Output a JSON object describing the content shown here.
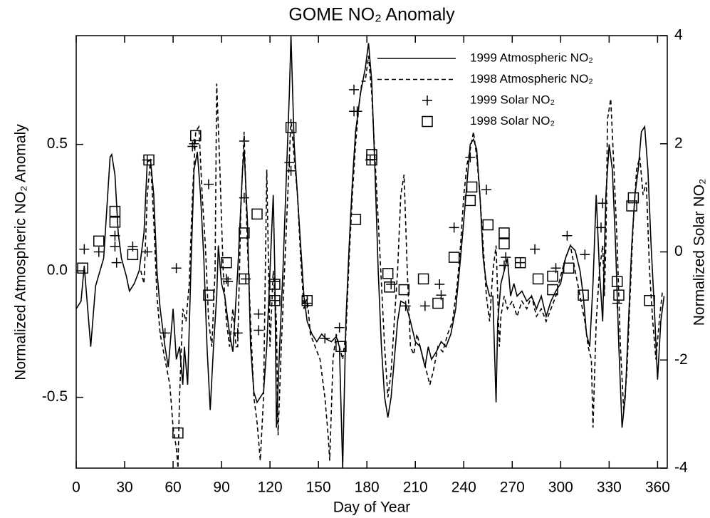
{
  "chart_data": {
    "type": "line",
    "title": "GOME NO₂ Anomaly",
    "x_label": "Day of Year",
    "y_label": "Normalized Atmospheric NO₂ Anomaly",
    "y2_label": "Normalized Solar NO₂",
    "xlim": [
      0,
      366
    ],
    "xticks": [
      0,
      30,
      60,
      90,
      120,
      150,
      180,
      210,
      240,
      270,
      300,
      330,
      360
    ],
    "ylim": [
      -0.78,
      0.93
    ],
    "yticks": [
      {
        "value": -0.5,
        "label": "-0.5"
      },
      {
        "value": 0,
        "label": "0.0"
      },
      {
        "value": 0.5,
        "label": "0.5"
      }
    ],
    "y2lim": [
      -4,
      4
    ],
    "y2ticks": [
      -4,
      -2,
      0,
      2,
      4
    ],
    "legend": "upper right",
    "series": [
      {
        "name": "1999 Atmospheric NO₂",
        "color": "#000000",
        "style": "solid",
        "x": [
          0,
          3,
          5,
          9,
          12,
          17,
          21,
          22,
          24,
          26,
          28,
          31,
          33,
          36,
          39,
          42,
          44,
          46,
          48,
          50,
          52,
          55,
          57,
          60,
          62,
          64,
          66,
          67,
          69,
          71,
          73,
          75,
          77,
          79,
          81,
          83,
          85,
          87,
          88,
          90,
          92,
          95,
          97,
          100,
          103,
          104,
          106,
          108,
          110,
          112,
          114,
          116,
          118,
          120,
          122,
          123,
          124,
          126,
          128,
          130,
          132,
          133,
          135,
          137,
          139,
          141,
          143,
          146,
          149,
          152,
          155,
          158,
          161,
          163,
          165,
          167,
          169,
          171,
          173,
          176,
          179,
          181,
          183,
          185,
          187,
          189,
          191,
          193,
          195,
          197,
          199,
          201,
          204,
          207,
          210,
          213,
          216,
          218,
          220,
          223,
          226,
          229,
          232,
          235,
          238,
          240,
          242,
          244,
          246,
          248,
          250,
          252,
          254,
          256,
          258,
          260,
          261,
          263,
          265,
          267,
          269,
          271,
          273,
          276,
          279,
          282,
          285,
          288,
          291,
          294,
          297,
          300,
          303,
          306,
          309,
          312,
          314,
          316,
          318,
          320,
          322,
          324,
          326,
          328,
          330,
          332,
          334,
          336,
          338,
          340,
          342,
          344,
          346,
          348,
          350,
          352,
          354,
          356,
          358,
          360,
          362,
          364
        ],
        "values": [
          -0.15,
          -0.12,
          0.02,
          -0.3,
          -0.06,
          0.05,
          0.45,
          0.46,
          0.38,
          0.15,
          0.05,
          -0.02,
          -0.08,
          -0.05,
          0.0,
          0.15,
          0.43,
          0.44,
          0.3,
          0.0,
          -0.15,
          -0.3,
          -0.38,
          -0.15,
          -0.35,
          -0.3,
          -0.45,
          -0.3,
          -0.45,
          0.0,
          0.4,
          0.47,
          0.3,
          0.05,
          -0.3,
          -0.55,
          -0.3,
          -0.1,
          0.1,
          -0.05,
          -0.1,
          -0.25,
          -0.32,
          0.0,
          0.4,
          0.48,
          0.2,
          -0.3,
          -0.48,
          -0.52,
          -0.5,
          -0.48,
          -0.3,
          0.0,
          0.3,
          0.0,
          -0.62,
          -0.3,
          0.0,
          0.35,
          0.7,
          0.93,
          0.5,
          0.3,
          0.1,
          -0.1,
          -0.2,
          -0.25,
          -0.28,
          -0.25,
          -0.27,
          -0.28,
          -0.26,
          -0.3,
          -0.78,
          -0.2,
          0.1,
          0.35,
          0.55,
          0.7,
          0.8,
          0.9,
          0.75,
          0.4,
          0.0,
          -0.3,
          -0.5,
          -0.58,
          -0.5,
          -0.35,
          -0.2,
          -0.12,
          -0.13,
          -0.2,
          -0.28,
          -0.3,
          -0.38,
          -0.3,
          -0.35,
          -0.32,
          -0.28,
          -0.3,
          -0.25,
          -0.15,
          0.05,
          0.2,
          0.35,
          0.5,
          0.52,
          0.48,
          0.3,
          0.05,
          -0.05,
          -0.1,
          -0.1,
          -0.52,
          -0.2,
          -0.05,
          0.0,
          0.05,
          -0.1,
          -0.05,
          -0.1,
          -0.08,
          -0.12,
          -0.1,
          -0.15,
          -0.1,
          -0.18,
          -0.12,
          -0.08,
          -0.05,
          0.05,
          0.1,
          0.08,
          0.0,
          -0.1,
          -0.25,
          -0.3,
          -0.05,
          0.3,
          0.0,
          -0.2,
          0.3,
          0.5,
          0.4,
          0.1,
          -0.3,
          -0.62,
          -0.5,
          -0.2,
          0.1,
          0.3,
          0.4,
          0.55,
          0.57,
          0.4,
          0.1,
          -0.15,
          -0.43,
          -0.2,
          -0.1
        ]
      },
      {
        "name": "1998 Atmospheric NO₂",
        "color": "#000000",
        "style": "dashed",
        "x": [
          40,
          42,
          44,
          46,
          48,
          50,
          52,
          55,
          58,
          60,
          62,
          63,
          64,
          66,
          68,
          70,
          72,
          74,
          76,
          78,
          80,
          82,
          84,
          86,
          87,
          89,
          91,
          93,
          95,
          97,
          99,
          100,
          102,
          104,
          106,
          108,
          110,
          112,
          114,
          116,
          118,
          120,
          122,
          124,
          125,
          127,
          129,
          131,
          133,
          135,
          137,
          139,
          141,
          143,
          145,
          148,
          151,
          154,
          156,
          157,
          159,
          161,
          163,
          165,
          167,
          169,
          171,
          173,
          175,
          177,
          179,
          181,
          183,
          185,
          187,
          189,
          191,
          193,
          195,
          197,
          199,
          201,
          203,
          205,
          207,
          209,
          211,
          213,
          215,
          217,
          219,
          221,
          224,
          227,
          230,
          233,
          236,
          238,
          240,
          242,
          244,
          246,
          248,
          250,
          252,
          254,
          256,
          258,
          260,
          262,
          263,
          265,
          267,
          270,
          273,
          276,
          279,
          282,
          285,
          288,
          291,
          294,
          297,
          300,
          303,
          306,
          309,
          312,
          315,
          317,
          319,
          320,
          322,
          324,
          326,
          327,
          328,
          329,
          331,
          333,
          335,
          337,
          339,
          341,
          343,
          345,
          347,
          349,
          351,
          353,
          355,
          357,
          359,
          361,
          363
        ],
        "values": [
          0.0,
          -0.05,
          0.3,
          0.44,
          0.2,
          -0.1,
          -0.25,
          -0.35,
          -0.45,
          -0.62,
          -0.7,
          -0.78,
          -0.5,
          -0.15,
          -0.2,
          -0.05,
          0.3,
          0.55,
          0.57,
          0.3,
          0.1,
          -0.2,
          -0.3,
          0.0,
          0.74,
          0.4,
          0.0,
          -0.2,
          -0.3,
          -0.15,
          -0.3,
          -0.3,
          0.25,
          0.55,
          0.1,
          -0.2,
          -0.5,
          -0.6,
          -0.75,
          -0.5,
          0.4,
          -0.3,
          0.0,
          -0.2,
          -0.65,
          -0.3,
          0.0,
          0.3,
          0.6,
          0.45,
          0.3,
          0.05,
          -0.15,
          -0.1,
          -0.25,
          -0.3,
          -0.35,
          -0.5,
          -0.65,
          -0.75,
          -0.35,
          -0.25,
          -0.3,
          -0.35,
          -0.25,
          0.05,
          0.3,
          0.5,
          0.65,
          0.75,
          0.75,
          0.85,
          0.7,
          0.45,
          0.2,
          -0.05,
          -0.3,
          -0.5,
          -0.4,
          -0.2,
          0.0,
          0.3,
          0.38,
          0.0,
          -0.3,
          -0.33,
          -0.25,
          -0.3,
          -0.35,
          -0.4,
          -0.45,
          -0.4,
          -0.3,
          -0.32,
          -0.25,
          -0.2,
          -0.05,
          0.1,
          0.3,
          0.42,
          0.48,
          0.55,
          0.45,
          0.3,
          0.1,
          -0.1,
          -0.2,
          0.0,
          0.1,
          -0.3,
          -0.18,
          -0.1,
          -0.15,
          -0.12,
          -0.18,
          -0.12,
          -0.15,
          -0.1,
          -0.18,
          -0.15,
          -0.2,
          -0.15,
          -0.1,
          -0.02,
          0.05,
          0.1,
          0.0,
          -0.1,
          -0.2,
          -0.3,
          -0.35,
          -0.62,
          -0.2,
          0.0,
          0.1,
          -0.1,
          0.1,
          0.6,
          0.68,
          0.4,
          0.1,
          -0.3,
          -0.55,
          -0.4,
          -0.1,
          0.2,
          0.4,
          0.45,
          0.3,
          0.35,
          0.0,
          -0.2,
          -0.35,
          -0.2,
          -0.08
        ]
      },
      {
        "name": "1999 Solar NO₂",
        "color": "#000000",
        "marker": "plus",
        "axis": "y2",
        "x": [
          5,
          14,
          24,
          24,
          25,
          35,
          44,
          44,
          55,
          62,
          72,
          73,
          82,
          93,
          94,
          100,
          104,
          104,
          105,
          113,
          113,
          123,
          123,
          132,
          133,
          143,
          154,
          163,
          172,
          172,
          174,
          182,
          195,
          204,
          216,
          225,
          226,
          234,
          244,
          254,
          265,
          266,
          275,
          284,
          297,
          304,
          315,
          325,
          326,
          335
        ],
        "values": [
          0.05,
          0.0,
          0.1,
          0.3,
          -0.2,
          0.1,
          1.7,
          0.0,
          -1.5,
          -0.3,
          1.95,
          2.0,
          1.25,
          -0.5,
          -0.55,
          -1.5,
          2.05,
          1.0,
          -0.5,
          -1.15,
          -1.45,
          -0.55,
          -0.9,
          1.65,
          1.5,
          -0.95,
          -1.6,
          -1.4,
          3.0,
          2.6,
          2.6,
          1.7,
          -0.6,
          -1.0,
          -1.0,
          -0.6,
          -0.8,
          0.45,
          1.75,
          1.15,
          -0.25,
          -0.1,
          -0.2,
          0.05,
          -0.3,
          0.3,
          -0.05,
          0.45,
          0.9,
          -0.95
        ]
      },
      {
        "name": "1998 Solar NO₂",
        "color": "#000000",
        "marker": "square",
        "axis": "y2",
        "x": [
          4,
          14,
          24,
          24,
          35,
          45,
          63,
          74,
          82,
          93,
          104,
          104,
          112,
          123,
          123,
          133,
          143,
          164,
          173,
          183,
          183,
          193,
          194,
          203,
          215,
          224,
          234,
          244,
          245,
          255,
          265,
          265,
          275,
          286,
          295,
          295,
          305,
          314,
          335,
          336,
          344,
          345,
          355
        ],
        "values": [
          -0.3,
          0.2,
          0.55,
          0.75,
          -0.05,
          1.7,
          -3.35,
          2.15,
          -0.8,
          -0.2,
          0.35,
          -0.5,
          0.7,
          -0.6,
          -0.9,
          2.3,
          -0.9,
          -1.75,
          0.6,
          1.8,
          1.7,
          -0.4,
          -0.65,
          -0.7,
          -0.5,
          -0.95,
          -0.1,
          0.95,
          1.2,
          0.5,
          0.15,
          0.35,
          -0.2,
          -0.5,
          -0.45,
          -0.7,
          -0.3,
          -0.8,
          -0.55,
          -0.8,
          0.85,
          1.0,
          -0.9
        ]
      }
    ]
  }
}
